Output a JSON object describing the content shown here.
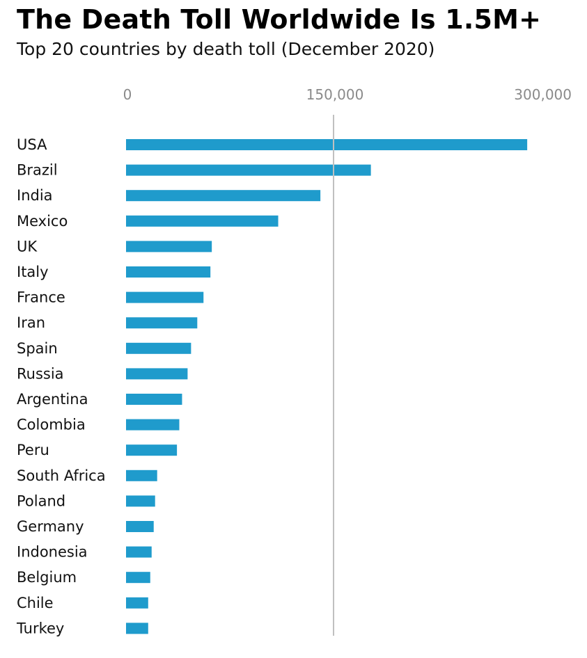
{
  "chart_data": {
    "type": "bar",
    "orientation": "horizontal",
    "title": "The Death Toll Worldwide Is 1.5M+",
    "subtitle": "Top 20 countries by death toll (December 2020)",
    "xlabel": "",
    "ylabel": "",
    "xlim": [
      0,
      300000
    ],
    "x_ticks": [
      0,
      150000,
      300000
    ],
    "x_tick_labels": [
      "0",
      "150,000",
      "300,000"
    ],
    "axis_position": "top",
    "reference_line": 150000,
    "grid": false,
    "bar_color": "#1f9bcc",
    "reference_line_color": "#c0c0c0",
    "categories": [
      "USA",
      "Brazil",
      "India",
      "Mexico",
      "UK",
      "Italy",
      "France",
      "Iran",
      "Spain",
      "Russia",
      "Argentina",
      "Colombia",
      "Peru",
      "South Africa",
      "Poland",
      "Germany",
      "Indonesia",
      "Belgium",
      "Chile",
      "Turkey"
    ],
    "values": [
      290000,
      177000,
      140500,
      110000,
      62000,
      61000,
      56000,
      51500,
      47000,
      44500,
      40500,
      38500,
      36800,
      22500,
      21000,
      20000,
      18500,
      17500,
      16000,
      16000
    ]
  }
}
